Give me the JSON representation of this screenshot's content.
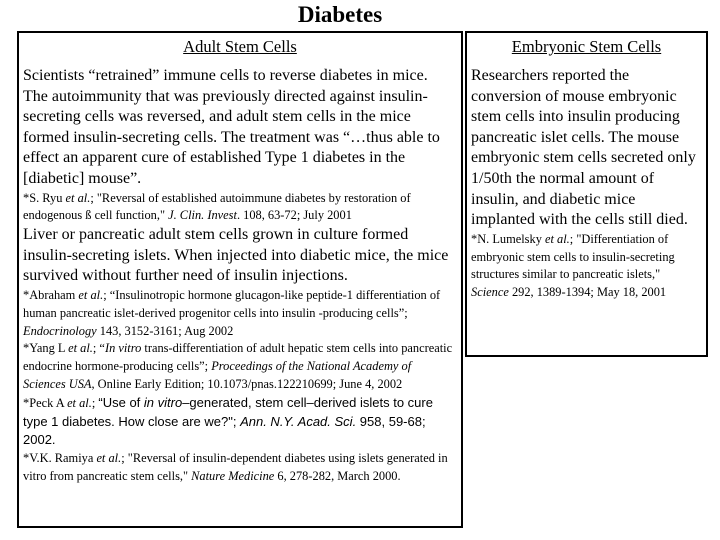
{
  "title": "Diabetes",
  "left_column": {
    "header": "Adult Stem Cells",
    "blocks": [
      {
        "style": "body",
        "segments": [
          {
            "t": "Scientists “retrained” immune cells to reverse diabetes in mice. The autoimmunity that was previously directed against insulin-secreting cells was reversed, and adult stem cells in the mice formed insulin-secreting cells. The treatment was “…thus able to effect an apparent cure of established Type 1 diabetes in the [diabetic] mouse”."
          }
        ]
      },
      {
        "style": "cite",
        "segments": [
          {
            "t": "*S. Ryu "
          },
          {
            "t": "et al.",
            "i": true
          },
          {
            "t": "; \"Reversal of established autoimmune diabetes by restoration of endogenous ß cell function,\" "
          },
          {
            "t": "J. Clin. Invest",
            "i": true
          },
          {
            "t": ". 108, 63-72; July 2001"
          }
        ]
      },
      {
        "style": "body",
        "segments": [
          {
            "t": "Liver or pancreatic adult stem cells grown in culture formed insulin-secreting islets. When injected into diabetic mice, the mice survived without further need of insulin injections."
          }
        ]
      },
      {
        "style": "cite",
        "segments": [
          {
            "t": "*Abraham "
          },
          {
            "t": "et al.",
            "i": true
          },
          {
            "t": "; “Insulinotropic hormone glucagon-like peptide-1 differentiation of human pancreatic islet-derived progenitor cells into insulin -producing cells”; "
          },
          {
            "t": "Endocrinology",
            "i": true
          },
          {
            "t": " 143, 3152-3161;  Aug 2002"
          }
        ]
      },
      {
        "style": "cite",
        "segments": [
          {
            "t": "*Yang L "
          },
          {
            "t": "et al.",
            "i": true
          },
          {
            "t": "; “"
          },
          {
            "t": "In vitro",
            "i": true
          },
          {
            "t": " trans-differentiation of adult hepatic stem cells into pancreatic endocrine hormone-producing cells”; "
          },
          {
            "t": "Proceedings of the National Academy of Sciences USA",
            "i": true
          },
          {
            "t": ", Online Early Edition; 10.1073/pnas.122210699; June 4, 2002"
          }
        ]
      },
      {
        "style": "cite",
        "segments": [
          {
            "t": "*Peck A "
          },
          {
            "t": "et al.",
            "i": true
          },
          {
            "t": "; "
          },
          {
            "t": "“Use of ",
            "f": "sans"
          },
          {
            "t": "in vitro",
            "i": true,
            "f": "sans"
          },
          {
            "t": "–generated, stem cell–derived islets to cure type 1 diabetes. How close are we?\"; ",
            "f": "sans"
          },
          {
            "t": "Ann. N.Y. Acad. Sci.",
            "i": true,
            "f": "sans"
          },
          {
            "t": " 958, 59-68; 2002.",
            "f": "sans"
          }
        ]
      },
      {
        "style": "cite",
        "segments": [
          {
            "t": "*V.K. Ramiya "
          },
          {
            "t": "et al.",
            "i": true
          },
          {
            "t": "; \"Reversal of insulin-dependent diabetes using islets generated in vitro from pancreatic stem cells,\" "
          },
          {
            "t": "Nature Medicine",
            "i": true
          },
          {
            "t": " 6, 278-282, March 2000."
          }
        ]
      }
    ]
  },
  "right_column": {
    "header": "Embryonic Stem Cells",
    "blocks": [
      {
        "style": "body",
        "segments": [
          {
            "t": "Researchers reported the conversion of mouse embryonic stem cells into insulin producing pancreatic islet cells. The mouse embryonic stem cells secreted only 1/50th the normal amount of insulin, and diabetic mice implanted with the cells still died."
          }
        ]
      },
      {
        "style": "cite",
        "segments": [
          {
            "t": "*N. Lumelsky "
          },
          {
            "t": "et al.",
            "i": true
          },
          {
            "t": "; \"Differentiation of embryonic stem cells to insulin-secreting structures similar to pancreatic islets,\" "
          },
          {
            "t": "Science",
            "i": true
          },
          {
            "t": " 292, 1389-1394; May 18, 2001"
          }
        ]
      }
    ]
  }
}
